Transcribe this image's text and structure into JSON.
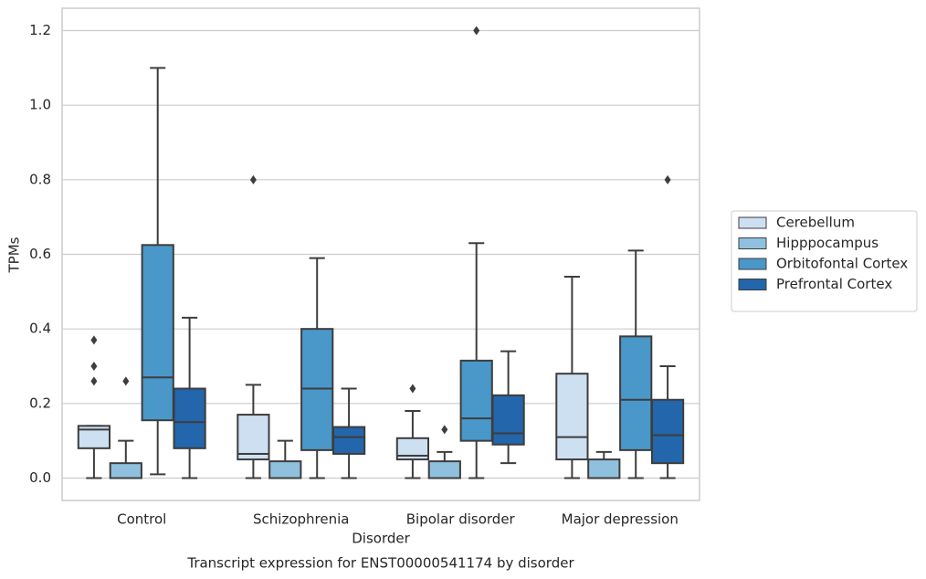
{
  "chart_data": {
    "type": "box",
    "title": "Transcript expression for ENST00000541174 by disorder",
    "x_label": "Disorder",
    "y_label": "TPMs",
    "categories": [
      "Control",
      "Schizophrenia",
      "Bipolar disorder",
      "Major depression"
    ],
    "ylim": [
      -0.06,
      1.26
    ],
    "yticks": [
      {
        "value": 0,
        "label": "0.0"
      },
      0.2,
      0.4,
      0.6,
      0.8,
      {
        "value": 1,
        "label": "1.0"
      },
      1.2
    ],
    "grid": true,
    "legend": "right",
    "series": [
      {
        "name": "Cerebellum",
        "color": "#cde0f1",
        "values": [
          {
            "min": 0,
            "q1": 0.08,
            "median": 0.13,
            "q3": 0.14,
            "max": 0.14,
            "outliers": [
              0.37,
              0.3,
              0.26
            ]
          },
          {
            "min": 0,
            "q1": 0.05,
            "median": 0.065,
            "q3": 0.17,
            "max": 0.25,
            "outliers": [
              0.8
            ]
          },
          {
            "min": 0,
            "q1": 0.05,
            "median": 0.06,
            "q3": 0.107,
            "max": 0.18,
            "outliers": [
              0.24
            ]
          },
          {
            "min": 0,
            "q1": 0.05,
            "median": 0.11,
            "q3": 0.28,
            "max": 0.54,
            "outliers": []
          }
        ]
      },
      {
        "name": "Hipppocampus",
        "color": "#8fc1de",
        "values": [
          {
            "min": 0,
            "q1": 0,
            "median": 0,
            "q3": 0.04,
            "max": 0.1,
            "outliers": [
              0.26
            ]
          },
          {
            "min": 0,
            "q1": 0,
            "median": 0,
            "q3": 0.045,
            "max": 0.1,
            "outliers": []
          },
          {
            "min": 0,
            "q1": 0,
            "median": 0,
            "q3": 0.045,
            "max": 0.07,
            "outliers": [
              0.13
            ]
          },
          {
            "min": 0,
            "q1": 0,
            "median": 0,
            "q3": 0.05,
            "max": 0.07,
            "outliers": []
          }
        ]
      },
      {
        "name": "Orbitofontal Cortex",
        "color": "#4a97c9",
        "values": [
          {
            "min": 0.01,
            "q1": 0.155,
            "median": 0.27,
            "q3": 0.625,
            "max": 1.1,
            "outliers": []
          },
          {
            "min": 0,
            "q1": 0.075,
            "median": 0.24,
            "q3": 0.4,
            "max": 0.59,
            "outliers": []
          },
          {
            "min": 0,
            "q1": 0.1,
            "median": 0.16,
            "q3": 0.315,
            "max": 0.63,
            "outliers": [
              1.2
            ]
          },
          {
            "min": 0,
            "q1": 0.075,
            "median": 0.21,
            "q3": 0.38,
            "max": 0.61,
            "outliers": []
          }
        ]
      },
      {
        "name": "Prefrontal Cortex",
        "color": "#2366ab",
        "values": [
          {
            "min": 0,
            "q1": 0.08,
            "median": 0.15,
            "q3": 0.24,
            "max": 0.43,
            "outliers": []
          },
          {
            "min": 0,
            "q1": 0.065,
            "median": 0.11,
            "q3": 0.137,
            "max": 0.24,
            "outliers": []
          },
          {
            "min": 0.04,
            "q1": 0.09,
            "median": 0.12,
            "q3": 0.222,
            "max": 0.34,
            "outliers": []
          },
          {
            "min": 0,
            "q1": 0.04,
            "median": 0.115,
            "q3": 0.21,
            "max": 0.3,
            "outliers": [
              0.8
            ]
          }
        ]
      }
    ]
  }
}
